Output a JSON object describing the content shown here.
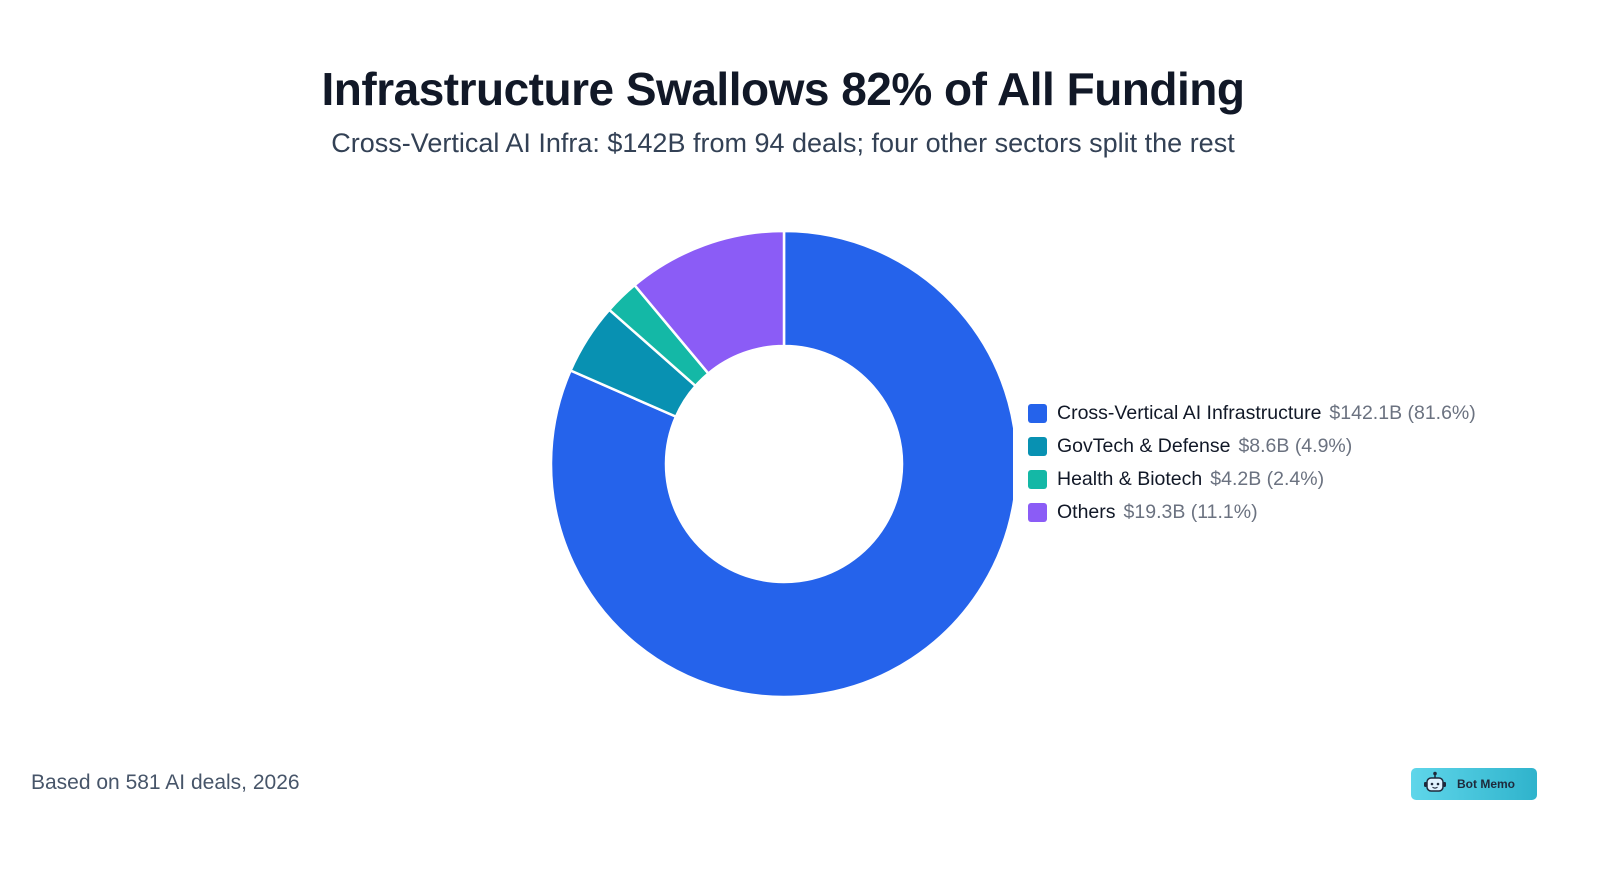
{
  "header": {
    "title": "Infrastructure Swallows 82% of All Funding",
    "subtitle": "Cross-Vertical AI Infra: $142B from 94 deals; four other sectors split the rest"
  },
  "legend": [
    {
      "label": "Cross-Vertical AI Infrastructure",
      "value": "$142.1B (81.6%)",
      "color": "#2563eb"
    },
    {
      "label": "GovTech & Defense",
      "value": "$8.6B (4.9%)",
      "color": "#0891b2"
    },
    {
      "label": "Health & Biotech",
      "value": "$4.2B (2.4%)",
      "color": "#14b8a6"
    },
    {
      "label": "Others",
      "value": "$19.3B (11.1%)",
      "color": "#8b5cf6"
    }
  ],
  "footer": {
    "note": "Based on 581 AI deals, 2026",
    "badge_label": "Bot Memo",
    "badge_icon": "robot-icon"
  },
  "chart_data": {
    "type": "pie",
    "variant": "donut",
    "title": "Infrastructure Swallows 82% of All Funding",
    "subtitle": "Cross-Vertical AI Infra: $142B from 94 deals; four other sectors split the rest",
    "categories": [
      "Cross-Vertical AI Infrastructure",
      "GovTech & Defense",
      "Health & Biotech",
      "Others"
    ],
    "values": [
      142.1,
      8.6,
      4.2,
      19.3
    ],
    "percentages": [
      81.6,
      4.9,
      2.4,
      11.1
    ],
    "unit": "$B",
    "colors": [
      "#2563eb",
      "#0891b2",
      "#14b8a6",
      "#8b5cf6"
    ],
    "legend_position": "right",
    "annotation": "Based on 581 AI deals, 2026"
  }
}
